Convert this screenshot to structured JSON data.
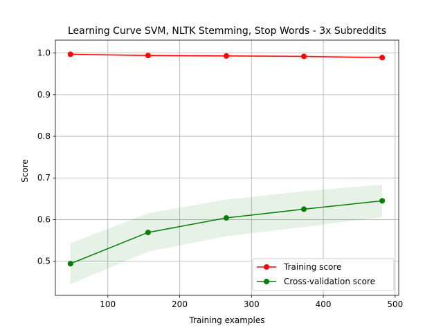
{
  "chart_data": {
    "type": "line",
    "title": "Learning Curve SVM, NLTK Stemming, Stop Words - 3x Subreddits",
    "xlabel": "Training examples",
    "ylabel": "Score",
    "xlim": [
      27,
      505
    ],
    "ylim": [
      0.418,
      1.031
    ],
    "x_ticks": [
      100,
      200,
      300,
      400,
      500
    ],
    "y_ticks": [
      0.5,
      0.6,
      0.7,
      0.8,
      0.9,
      1.0
    ],
    "x_tick_labels": [
      "100",
      "200",
      "300",
      "400",
      "500"
    ],
    "y_tick_labels": [
      "0.5",
      "0.6",
      "0.7",
      "0.8",
      "0.9",
      "1.0"
    ],
    "grid": true,
    "legend_position": "lower-right",
    "x": [
      48,
      156,
      265,
      373,
      482
    ],
    "series": [
      {
        "name": "Training score",
        "color": "#ff0000",
        "values": [
          0.997,
          0.994,
          0.993,
          0.992,
          0.989
        ],
        "band_upper": [
          0.999,
          0.997,
          0.996,
          0.995,
          0.993
        ],
        "band_lower": [
          0.995,
          0.991,
          0.99,
          0.989,
          0.985
        ]
      },
      {
        "name": "Cross-validation score",
        "color": "#008000",
        "values": [
          0.494,
          0.569,
          0.604,
          0.625,
          0.645
        ],
        "band_upper": [
          0.543,
          0.615,
          0.648,
          0.668,
          0.684
        ],
        "band_lower": [
          0.445,
          0.523,
          0.56,
          0.582,
          0.606
        ]
      }
    ]
  }
}
